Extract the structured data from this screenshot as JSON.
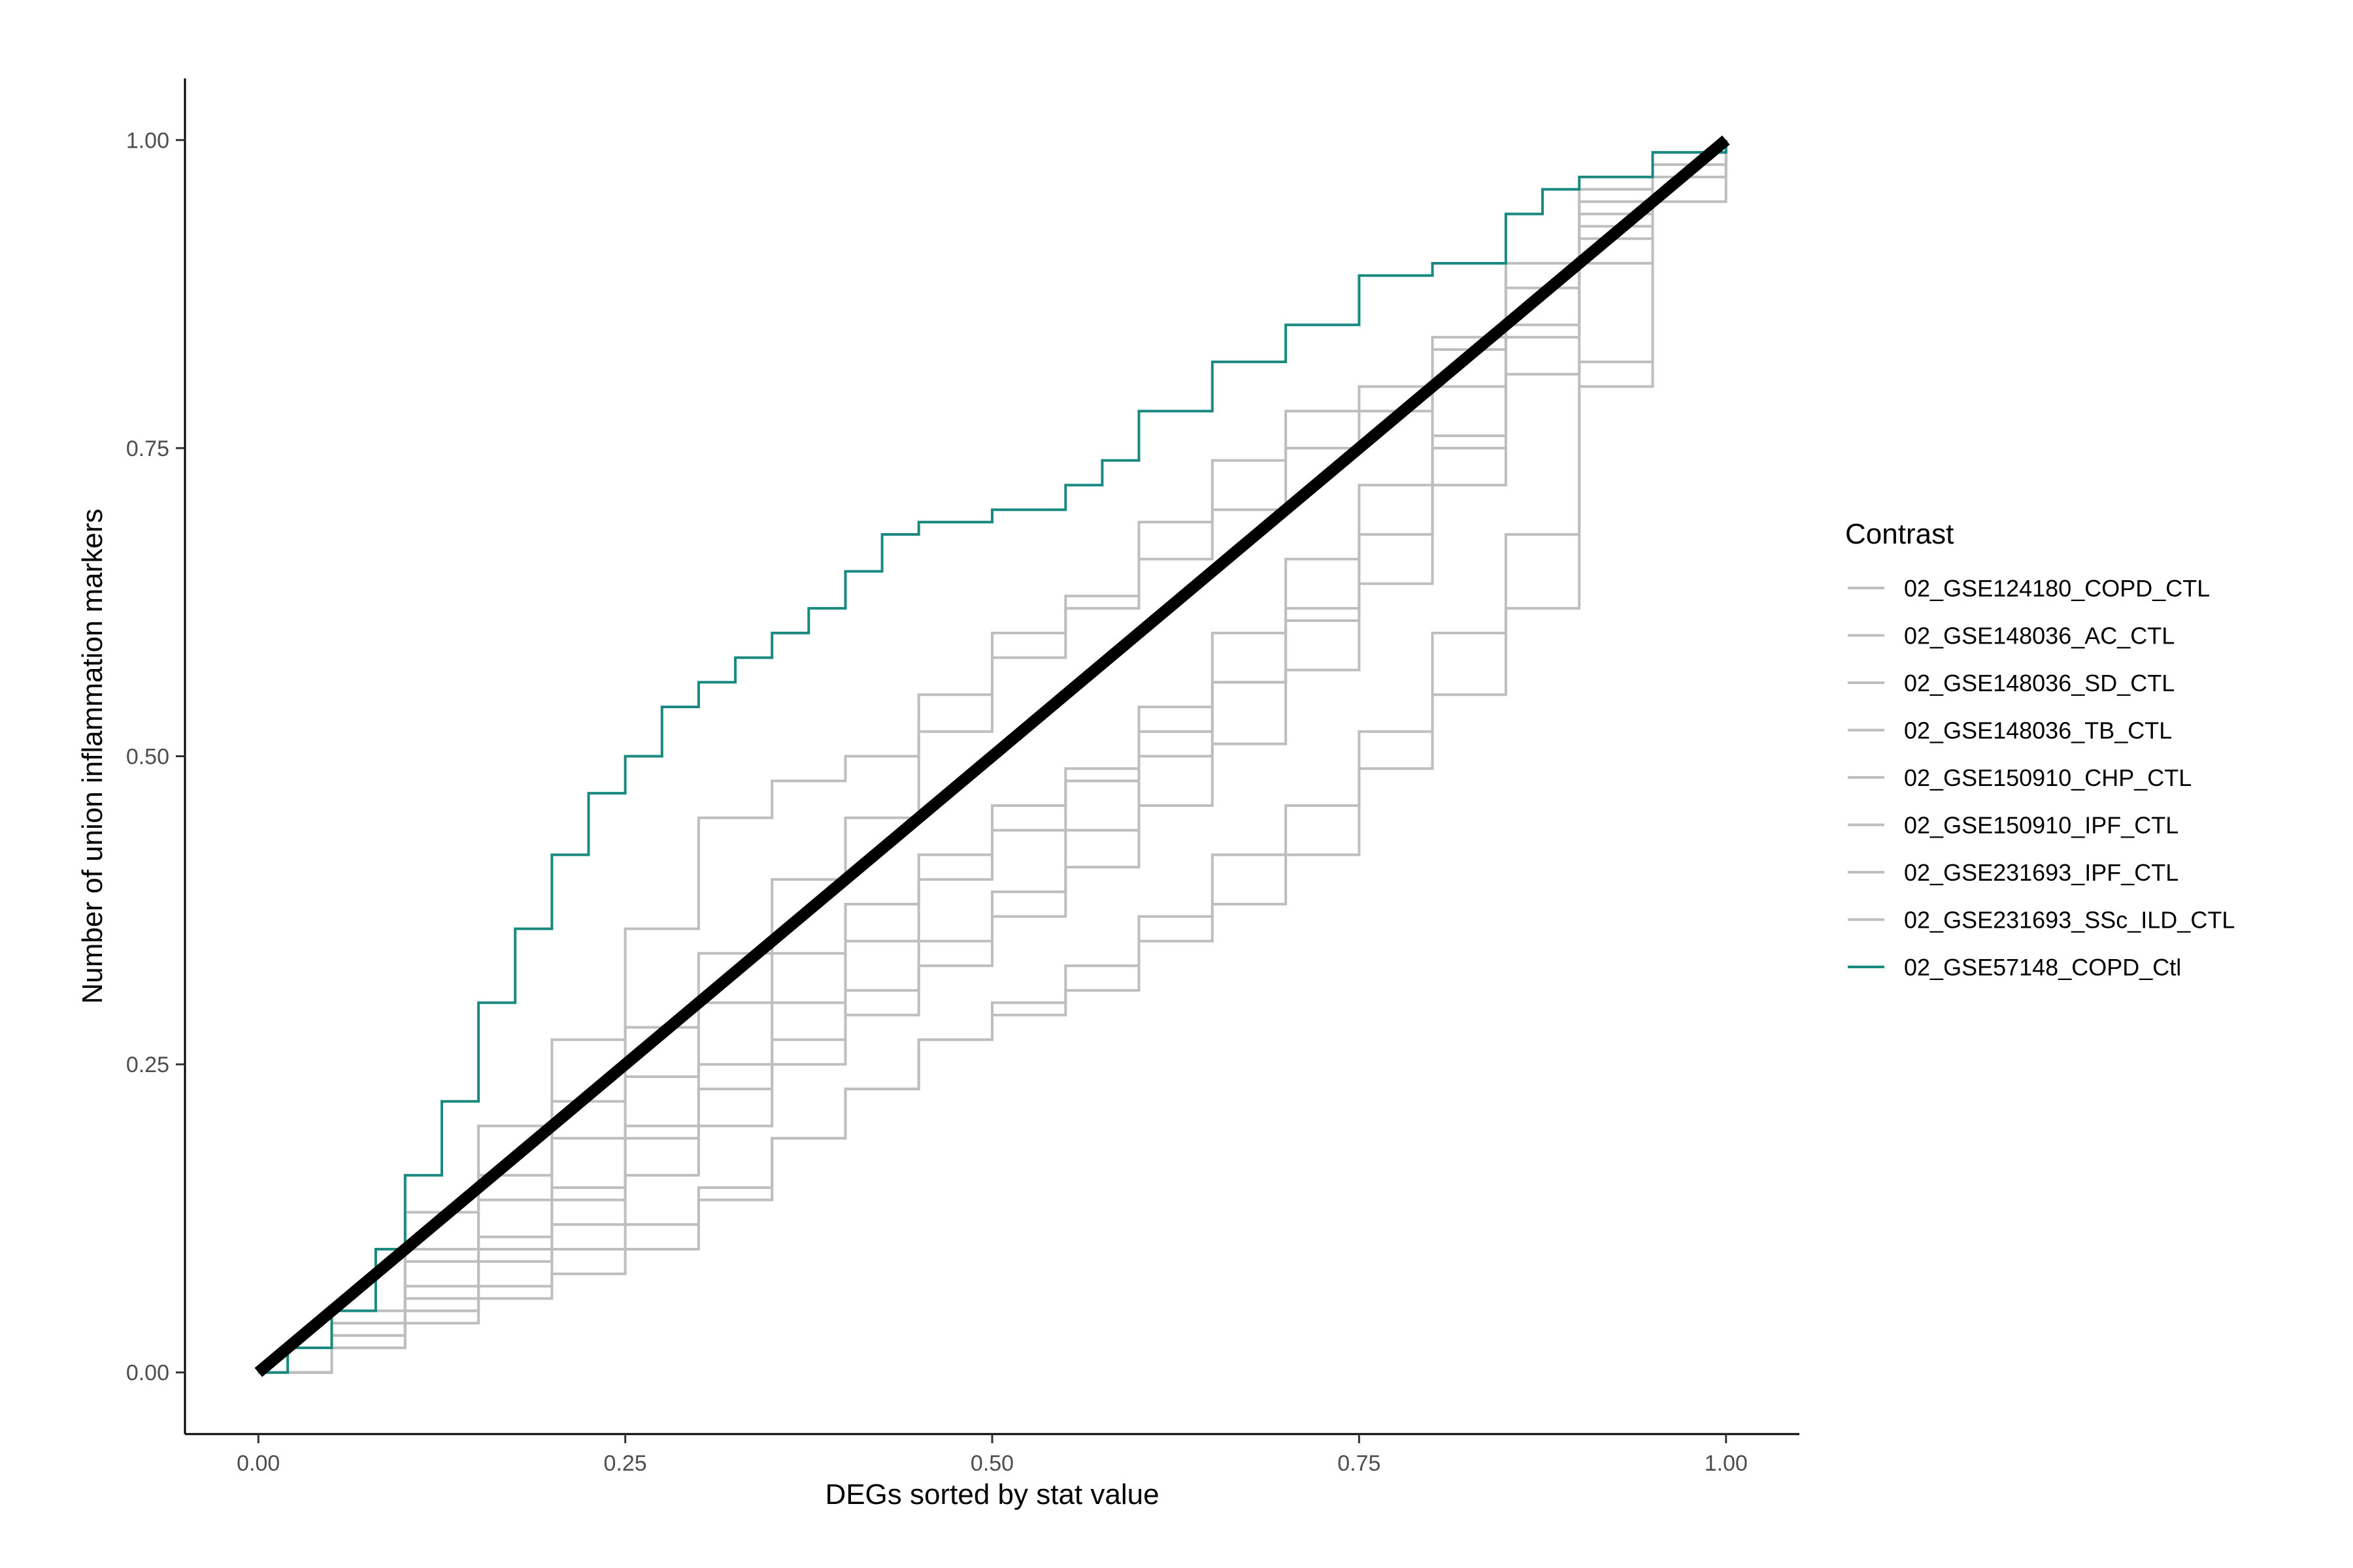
{
  "chart_data": {
    "type": "line",
    "title": "",
    "xlabel": "DEGs sorted by stat value",
    "ylabel": "Number of union inflammation markers",
    "xlim": [
      -0.05,
      1.05
    ],
    "ylim": [
      -0.05,
      1.05
    ],
    "x_ticks": [
      "0.00",
      "0.25",
      "0.50",
      "0.75",
      "1.00"
    ],
    "y_ticks": [
      "0.00",
      "0.25",
      "0.50",
      "0.75",
      "1.00"
    ],
    "grid": false,
    "legend": {
      "title": "Contrast",
      "position": "right"
    },
    "reference_line": {
      "x": [
        0,
        1
      ],
      "y": [
        0,
        1
      ],
      "color": "#000000"
    },
    "series": [
      {
        "name": "02_GSE124180_COPD_CTL",
        "color": "#bebebe",
        "x": [
          0,
          0.05,
          0.1,
          0.15,
          0.2,
          0.25,
          0.3,
          0.35,
          0.4,
          0.45,
          0.5,
          0.55,
          0.6,
          0.65,
          0.7,
          0.75,
          0.8,
          0.85,
          0.9,
          0.95,
          1.0
        ],
        "y": [
          0,
          0.05,
          0.13,
          0.2,
          0.27,
          0.36,
          0.45,
          0.48,
          0.5,
          0.55,
          0.6,
          0.62,
          0.66,
          0.7,
          0.75,
          0.78,
          0.83,
          0.9,
          0.96,
          0.99,
          1.0
        ]
      },
      {
        "name": "02_GSE148036_AC_CTL",
        "color": "#bebebe",
        "x": [
          0,
          0.05,
          0.1,
          0.15,
          0.2,
          0.25,
          0.3,
          0.35,
          0.4,
          0.45,
          0.5,
          0.55,
          0.6,
          0.65,
          0.7,
          0.75,
          0.8,
          0.85,
          0.9,
          0.95,
          1.0
        ],
        "y": [
          0,
          0.04,
          0.1,
          0.16,
          0.22,
          0.28,
          0.34,
          0.4,
          0.45,
          0.52,
          0.58,
          0.63,
          0.69,
          0.74,
          0.78,
          0.8,
          0.84,
          0.9,
          0.95,
          0.99,
          1.0
        ]
      },
      {
        "name": "02_GSE148036_SD_CTL",
        "color": "#bebebe",
        "x": [
          0,
          0.05,
          0.1,
          0.15,
          0.2,
          0.25,
          0.3,
          0.35,
          0.4,
          0.45,
          0.5,
          0.55,
          0.6,
          0.65,
          0.7,
          0.75,
          0.8,
          0.85,
          0.9,
          0.95,
          1.0
        ],
        "y": [
          0,
          0.03,
          0.07,
          0.11,
          0.15,
          0.2,
          0.25,
          0.3,
          0.35,
          0.4,
          0.44,
          0.48,
          0.52,
          0.56,
          0.62,
          0.68,
          0.75,
          0.84,
          0.92,
          0.98,
          1.0
        ]
      },
      {
        "name": "02_GSE148036_TB_CTL",
        "color": "#bebebe",
        "x": [
          0,
          0.05,
          0.1,
          0.15,
          0.2,
          0.25,
          0.3,
          0.35,
          0.4,
          0.45,
          0.5,
          0.55,
          0.6,
          0.65,
          0.7,
          0.75,
          0.8,
          0.85,
          0.9,
          0.95,
          1.0
        ],
        "y": [
          0,
          0.04,
          0.09,
          0.14,
          0.19,
          0.24,
          0.3,
          0.34,
          0.38,
          0.42,
          0.46,
          0.49,
          0.54,
          0.6,
          0.66,
          0.72,
          0.8,
          0.88,
          0.94,
          0.99,
          1.0
        ]
      },
      {
        "name": "02_GSE150910_CHP_CTL",
        "color": "#bebebe",
        "x": [
          0,
          0.05,
          0.1,
          0.15,
          0.2,
          0.25,
          0.3,
          0.35,
          0.4,
          0.45,
          0.5,
          0.55,
          0.6,
          0.65,
          0.7,
          0.75,
          0.8,
          0.85,
          0.9,
          0.95,
          1.0
        ],
        "y": [
          0,
          0.02,
          0.05,
          0.09,
          0.12,
          0.16,
          0.2,
          0.25,
          0.29,
          0.33,
          0.37,
          0.41,
          0.46,
          0.51,
          0.57,
          0.64,
          0.72,
          0.81,
          0.9,
          0.98,
          1.0
        ]
      },
      {
        "name": "02_GSE150910_IPF_CTL",
        "color": "#bebebe",
        "x": [
          0,
          0.05,
          0.1,
          0.15,
          0.2,
          0.25,
          0.3,
          0.35,
          0.4,
          0.45,
          0.5,
          0.55,
          0.6,
          0.65,
          0.7,
          0.75,
          0.8,
          0.85,
          0.9,
          0.95,
          1.0
        ],
        "y": [
          0,
          0.02,
          0.05,
          0.07,
          0.1,
          0.12,
          0.15,
          0.19,
          0.23,
          0.27,
          0.3,
          0.33,
          0.37,
          0.42,
          0.46,
          0.52,
          0.6,
          0.68,
          0.8,
          0.95,
          1.0
        ]
      },
      {
        "name": "02_GSE231693_IPF_CTL",
        "color": "#bebebe",
        "x": [
          0,
          0.05,
          0.1,
          0.15,
          0.2,
          0.25,
          0.3,
          0.35,
          0.4,
          0.45,
          0.5,
          0.55,
          0.6,
          0.65,
          0.7,
          0.75,
          0.8,
          0.85,
          0.9,
          0.95,
          1.0
        ],
        "y": [
          0,
          0.03,
          0.06,
          0.1,
          0.14,
          0.19,
          0.23,
          0.27,
          0.31,
          0.35,
          0.39,
          0.44,
          0.5,
          0.56,
          0.61,
          0.68,
          0.76,
          0.85,
          0.93,
          0.99,
          1.0
        ]
      },
      {
        "name": "02_GSE231693_SSc_ILD_CTL",
        "color": "#bebebe",
        "x": [
          0,
          0.05,
          0.1,
          0.15,
          0.2,
          0.25,
          0.3,
          0.35,
          0.4,
          0.45,
          0.5,
          0.55,
          0.6,
          0.65,
          0.7,
          0.75,
          0.8,
          0.85,
          0.9,
          0.95,
          1.0
        ],
        "y": [
          0,
          0.02,
          0.04,
          0.06,
          0.08,
          0.1,
          0.14,
          0.19,
          0.23,
          0.27,
          0.29,
          0.31,
          0.35,
          0.38,
          0.42,
          0.49,
          0.55,
          0.62,
          0.82,
          0.97,
          1.0
        ]
      },
      {
        "name": "02_GSE57148_COPD_Ctl",
        "color": "#1a8a80",
        "x": [
          0,
          0.02,
          0.05,
          0.08,
          0.1,
          0.125,
          0.15,
          0.175,
          0.2,
          0.225,
          0.25,
          0.275,
          0.3,
          0.325,
          0.35,
          0.375,
          0.4,
          0.425,
          0.45,
          0.5,
          0.55,
          0.575,
          0.6,
          0.65,
          0.7,
          0.75,
          0.8,
          0.85,
          0.875,
          0.9,
          0.95,
          1.0
        ],
        "y": [
          0,
          0.02,
          0.05,
          0.1,
          0.16,
          0.22,
          0.3,
          0.36,
          0.42,
          0.47,
          0.5,
          0.54,
          0.56,
          0.58,
          0.6,
          0.62,
          0.65,
          0.68,
          0.69,
          0.7,
          0.72,
          0.74,
          0.78,
          0.82,
          0.85,
          0.89,
          0.9,
          0.94,
          0.96,
          0.97,
          0.99,
          1.0
        ]
      }
    ]
  }
}
